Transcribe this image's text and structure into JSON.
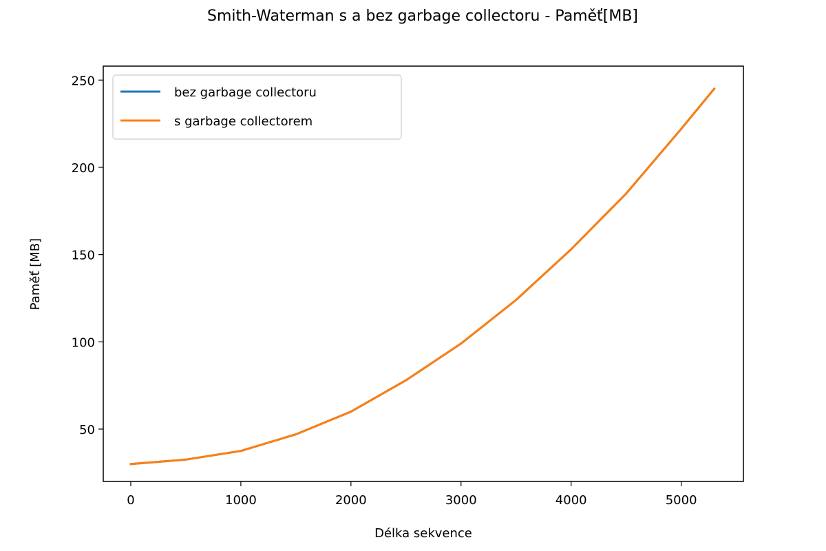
{
  "chart_data": {
    "type": "line",
    "title": "Smith-Waterman s a bez garbage collectoru - Paměť[MB]",
    "xlabel": "Délka sekvence",
    "ylabel": "Paměť [MB]",
    "xlim": [
      -250,
      5565
    ],
    "ylim": [
      20,
      258
    ],
    "xticks": [
      0,
      1000,
      2000,
      3000,
      4000,
      5000
    ],
    "yticks": [
      50,
      100,
      150,
      200,
      250
    ],
    "grid": false,
    "legend_position": "top-left",
    "series": [
      {
        "name": "bez garbage collectoru",
        "color": "#1f77b4",
        "x": [
          0,
          500,
          1000,
          1500,
          2000,
          2500,
          3000,
          3500,
          4000,
          4500,
          5000,
          5300
        ],
        "y": [
          30,
          32.5,
          37.5,
          47,
          60,
          78,
          99,
          124,
          153,
          185,
          222,
          245
        ]
      },
      {
        "name": "s garbage collectorem",
        "color": "#ff7f0e",
        "x": [
          0,
          500,
          1000,
          1500,
          2000,
          2500,
          3000,
          3500,
          4000,
          4500,
          5000,
          5300
        ],
        "y": [
          30,
          32.5,
          37.5,
          47,
          60,
          78,
          99,
          124,
          153,
          185,
          222,
          245
        ]
      }
    ]
  }
}
